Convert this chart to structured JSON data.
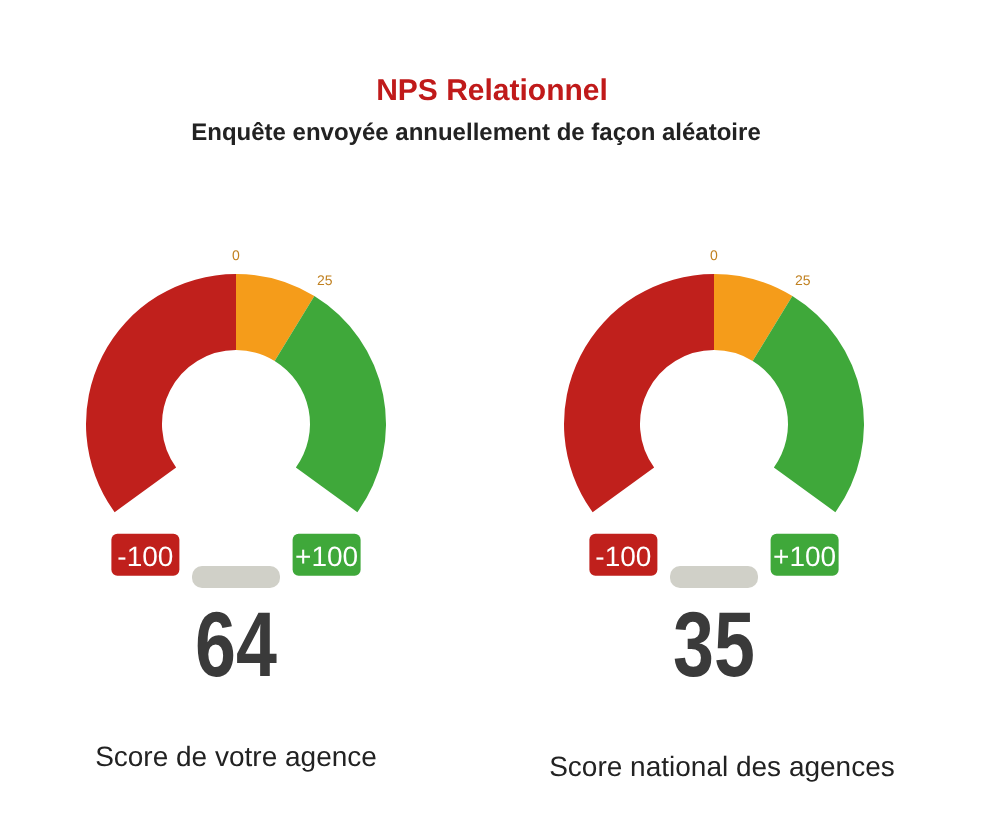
{
  "chart_data": [
    {
      "type": "donut",
      "title": "NPS Relationnel",
      "subtitle": "Enquête envoyée annuellement de façon aléatoire",
      "xlabel": "Score de votre agence",
      "categories": [
        null,
        null,
        null
      ],
      "values": [
        50,
        12.5,
        37.5
      ],
      "colors": [
        "#c0201c",
        "#f59c1a",
        "#3fa83a"
      ],
      "annotations": [
        "-100",
        "0",
        "25",
        "+100",
        "64"
      ]
    },
    {
      "type": "donut",
      "xlabel": "Score national des agences",
      "categories": [
        null,
        null,
        null
      ],
      "values": [
        50,
        12.5,
        37.5
      ],
      "colors": [
        "#c0201c",
        "#f59c1a",
        "#3fa83a"
      ],
      "annotations": [
        "-100",
        "0",
        "25",
        "+100",
        "35"
      ]
    }
  ]
}
